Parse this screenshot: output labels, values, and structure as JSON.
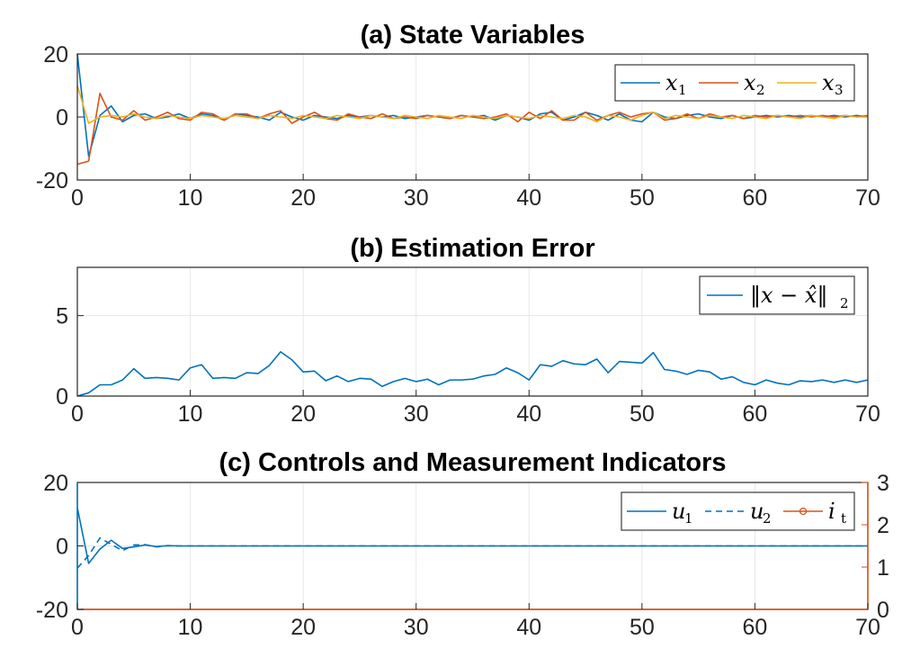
{
  "colors": {
    "blue": "#0072BD",
    "orange": "#D95319",
    "yellow": "#EDB120",
    "grid": "#e6e6e6",
    "axis": "#262626"
  },
  "chart_data": [
    {
      "type": "line",
      "title": "(a) State Variables",
      "xlim": [
        0,
        70
      ],
      "ylim": [
        -20,
        20
      ],
      "xticks": [
        "0",
        "10",
        "20",
        "30",
        "40",
        "50",
        "60",
        "70"
      ],
      "yticks": [
        "-20",
        "0",
        "20"
      ],
      "grid": true,
      "legend": {
        "position": "top-right",
        "entries": [
          {
            "sym": "x",
            "sub": "1"
          },
          {
            "sym": "x",
            "sub": "2"
          },
          {
            "sym": "x",
            "sub": "3"
          }
        ]
      },
      "x": [
        0,
        1,
        2,
        3,
        4,
        5,
        6,
        7,
        8,
        9,
        10,
        11,
        12,
        13,
        14,
        15,
        16,
        17,
        18,
        19,
        20,
        21,
        22,
        23,
        24,
        25,
        26,
        27,
        28,
        29,
        30,
        31,
        32,
        33,
        34,
        35,
        36,
        37,
        38,
        39,
        40,
        41,
        42,
        43,
        44,
        45,
        46,
        47,
        48,
        49,
        50,
        51,
        52,
        53,
        54,
        55,
        56,
        57,
        58,
        59,
        60,
        61,
        62,
        63,
        64,
        65,
        66,
        67,
        68,
        69,
        70
      ],
      "series": [
        {
          "values": [
            20,
            -12.5,
            0.5,
            3.5,
            -1.5,
            0.5,
            1,
            -0.5,
            0,
            1,
            -0.5,
            1,
            0.5,
            -1,
            1,
            0.5,
            0,
            -1,
            1.5,
            0,
            -1,
            0.5,
            0,
            -0.5,
            0.5,
            0,
            0.5,
            0,
            0.5,
            -0.5,
            0,
            0.5,
            0,
            -0.5,
            0.5,
            0,
            0.5,
            -1,
            0.5,
            0,
            -1,
            1,
            1.5,
            -1,
            0,
            1.5,
            0.5,
            -1,
            1,
            -1,
            -1.5,
            1.5,
            0,
            -0.5,
            0.5,
            1,
            0,
            -0.5,
            0.5,
            -0.5,
            0,
            0.5,
            0,
            0.5,
            0,
            0.5,
            0,
            0.5,
            0,
            0.5,
            0
          ]
        },
        {
          "values": [
            -15,
            -14,
            7.5,
            0,
            -1,
            2,
            -1,
            0,
            1.5,
            -0.5,
            -1,
            1.5,
            1,
            -1,
            1,
            1,
            -0.5,
            1,
            2,
            -2,
            0,
            1.5,
            -0.5,
            -1,
            1,
            0,
            -0.5,
            1,
            -0.5,
            0,
            -0.5,
            0.5,
            0,
            -0.5,
            0.5,
            0,
            -0.5,
            0,
            1,
            -1.5,
            1.5,
            -0.5,
            2,
            -1,
            -1,
            1.5,
            -1,
            0.5,
            1.5,
            0,
            1,
            1.5,
            -1,
            -0.5,
            1,
            -0.5,
            1,
            0,
            0.5,
            -0.5,
            0.5,
            0,
            0.5,
            0,
            0.5,
            0,
            0.5,
            0,
            0.5,
            0,
            0.5
          ]
        },
        {
          "values": [
            10,
            -2,
            0,
            0.5,
            0,
            1,
            0,
            -0.5,
            0.5,
            0,
            -0.5,
            0.5,
            0,
            -0.5,
            0.5,
            0,
            -0.5,
            0.5,
            0,
            -0.5,
            0.5,
            0,
            -0.5,
            0.5,
            0,
            -0.5,
            0.5,
            0,
            -0.5,
            0.5,
            0,
            -0.5,
            0.5,
            0,
            -0.5,
            0.5,
            0,
            -0.5,
            0.5,
            0,
            -0.5,
            0.5,
            0,
            -0.5,
            0.5,
            0,
            -1.5,
            0.5,
            0,
            -1,
            0.5,
            1.5,
            -0.5,
            0.5,
            0,
            -0.5,
            0.5,
            0,
            -0.5,
            0.5,
            0,
            -0.5,
            0.5,
            0,
            -0.5,
            0.5,
            0,
            -0.5,
            0.5,
            0,
            0
          ]
        }
      ]
    },
    {
      "type": "line",
      "title": "(b) Estimation Error",
      "xlim": [
        0,
        70
      ],
      "ylim": [
        0,
        8
      ],
      "xticks": [
        "0",
        "10",
        "20",
        "30",
        "40",
        "50",
        "60",
        "70"
      ],
      "yticks": [
        "0",
        "5"
      ],
      "grid": true,
      "legend": {
        "position": "top-right",
        "entries": [
          {
            "label": "‖x − x̂‖",
            "sub": "2"
          }
        ]
      },
      "x": [
        0,
        1,
        2,
        3,
        4,
        5,
        6,
        7,
        8,
        9,
        10,
        11,
        12,
        13,
        14,
        15,
        16,
        17,
        18,
        19,
        20,
        21,
        22,
        23,
        24,
        25,
        26,
        27,
        28,
        29,
        30,
        31,
        32,
        33,
        34,
        35,
        36,
        37,
        38,
        39,
        40,
        41,
        42,
        43,
        44,
        45,
        46,
        47,
        48,
        49,
        50,
        51,
        52,
        53,
        54,
        55,
        56,
        57,
        58,
        59,
        60,
        61,
        62,
        63,
        64,
        65,
        66,
        67,
        68,
        69,
        70
      ],
      "series": [
        {
          "values": [
            0,
            0.2,
            0.7,
            0.7,
            1.0,
            1.7,
            1.1,
            1.15,
            1.1,
            1.0,
            1.75,
            1.95,
            1.1,
            1.15,
            1.1,
            1.45,
            1.4,
            1.9,
            2.75,
            2.25,
            1.5,
            1.55,
            0.95,
            1.25,
            0.9,
            1.1,
            1.05,
            0.6,
            0.9,
            1.1,
            0.9,
            1.05,
            0.7,
            1.0,
            1.0,
            1.05,
            1.25,
            1.35,
            1.75,
            1.45,
            1.0,
            1.95,
            1.85,
            2.2,
            2.0,
            1.95,
            2.3,
            1.45,
            2.15,
            2.1,
            2.05,
            2.7,
            1.65,
            1.55,
            1.35,
            1.6,
            1.5,
            1.05,
            1.2,
            0.85,
            0.7,
            1.0,
            0.8,
            0.7,
            0.95,
            0.9,
            1.0,
            0.85,
            1.0,
            0.85,
            1.0
          ]
        }
      ]
    },
    {
      "type": "line",
      "title": "(c) Controls and Measurement Indicators",
      "xlim": [
        0,
        70
      ],
      "ylim": [
        -20,
        20
      ],
      "ylim_right": [
        0,
        3
      ],
      "xticks": [
        "0",
        "10",
        "20",
        "30",
        "40",
        "50",
        "60",
        "70"
      ],
      "yticks": [
        "-20",
        "0",
        "20"
      ],
      "yticks_right": [
        "0",
        "1",
        "2",
        "3"
      ],
      "grid": true,
      "legend": {
        "position": "top-right",
        "entries": [
          {
            "sym": "u",
            "sub": "1"
          },
          {
            "sym": "u",
            "sub": "2"
          },
          {
            "sym": "i",
            "sub": "t"
          }
        ]
      },
      "x": [
        0,
        1,
        2,
        3,
        4,
        5,
        6,
        7,
        8,
        9,
        10,
        11,
        12,
        13,
        14,
        15,
        16,
        17,
        18,
        19,
        20,
        21,
        22,
        23,
        24,
        25,
        26,
        27,
        28,
        29,
        30,
        31,
        32,
        33,
        34,
        35,
        36,
        37,
        38,
        39,
        40,
        41,
        42,
        43,
        44,
        45,
        46,
        47,
        48,
        49,
        50,
        51,
        52,
        53,
        54,
        55,
        56,
        57,
        58,
        59,
        60,
        61,
        62,
        63,
        64,
        65,
        66,
        67,
        68,
        69,
        70
      ],
      "series": [
        {
          "values": [
            12,
            -5.5,
            -1,
            1.8,
            -0.8,
            -0.3,
            0.3,
            -0.2,
            0.1,
            0,
            0,
            0,
            0,
            0,
            0,
            0,
            0,
            0,
            0,
            0,
            0,
            0,
            0,
            0,
            0,
            0,
            0,
            0,
            0,
            0,
            0,
            0,
            0,
            0,
            0,
            0,
            0,
            0,
            0,
            0,
            0,
            0,
            0,
            0,
            0,
            0,
            0,
            0,
            0,
            0,
            0,
            0,
            0,
            0,
            0,
            0,
            0,
            0,
            0,
            0,
            0,
            0,
            0,
            0,
            0,
            0,
            0,
            0,
            0,
            0,
            0
          ]
        },
        {
          "values": [
            -7,
            -3,
            2.5,
            0.5,
            -1.5,
            0.3,
            0.4,
            -0.3,
            0.1,
            0,
            0,
            0,
            0,
            0,
            0,
            0,
            0,
            0,
            0,
            0,
            0,
            0,
            0,
            0,
            0,
            0,
            0,
            0,
            0,
            0,
            0,
            0,
            0,
            0,
            0,
            0,
            0,
            0,
            0,
            0,
            0,
            0,
            0,
            0,
            0,
            0,
            0,
            0,
            0,
            0,
            0,
            0,
            0,
            0,
            0,
            0,
            0,
            0,
            0,
            0,
            0,
            0,
            0,
            0,
            0,
            0,
            0,
            0,
            0,
            0,
            0
          ]
        },
        {
          "values": [
            0,
            0,
            0,
            0,
            0,
            0,
            0,
            0,
            0,
            0,
            0,
            0,
            0,
            0,
            0,
            0,
            0,
            0,
            0,
            0,
            0,
            0,
            0,
            0,
            0,
            0,
            0,
            0,
            0,
            0,
            0,
            0,
            0,
            0,
            0,
            0,
            0,
            0,
            0,
            0,
            0,
            0,
            0,
            0,
            0,
            0,
            0,
            0,
            0,
            0,
            0,
            0,
            0,
            0,
            0,
            0,
            0,
            0,
            0,
            0,
            0,
            0,
            0,
            0,
            0,
            0,
            0,
            0,
            0,
            0,
            0
          ]
        }
      ]
    }
  ]
}
